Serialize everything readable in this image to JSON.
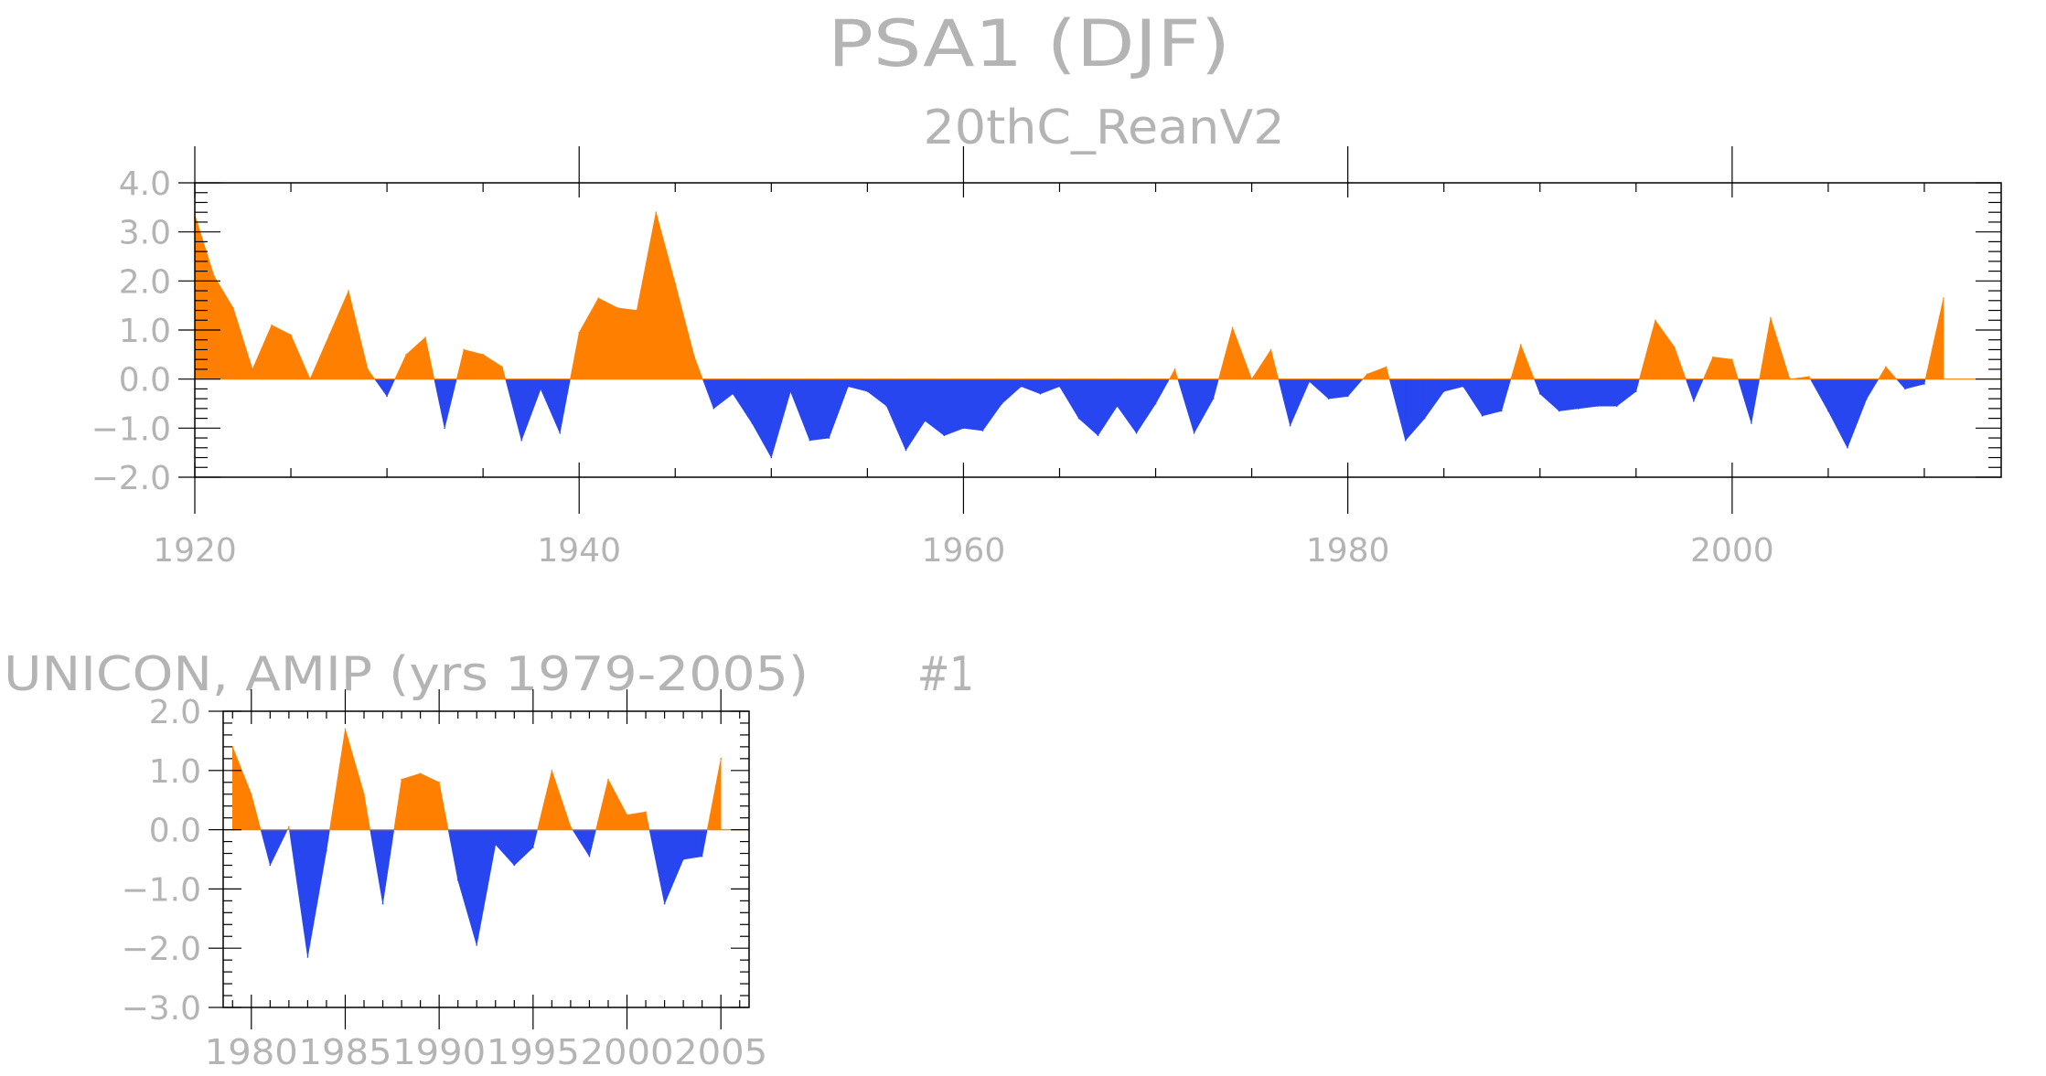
{
  "title": "PSA1 (DJF)",
  "panels": [
    {
      "subtitle": "20thC_ReanV2"
    },
    {
      "subtitle": "UNICON, AMIP (yrs 1979-2005)",
      "tag": "#1"
    }
  ],
  "colors": {
    "positive": "#ff8000",
    "negative": "#2846f0",
    "axis": "#000000",
    "text": "#b4b4b4"
  },
  "chart_data": [
    {
      "type": "area",
      "subtitle": "20thC_ReanV2",
      "x": [
        1920,
        1921,
        1922,
        1923,
        1924,
        1925,
        1926,
        1927,
        1928,
        1929,
        1930,
        1931,
        1932,
        1933,
        1934,
        1935,
        1936,
        1937,
        1938,
        1939,
        1940,
        1941,
        1942,
        1943,
        1944,
        1945,
        1946,
        1947,
        1948,
        1949,
        1950,
        1951,
        1952,
        1953,
        1954,
        1955,
        1956,
        1957,
        1958,
        1959,
        1960,
        1961,
        1962,
        1963,
        1964,
        1965,
        1966,
        1967,
        1968,
        1969,
        1970,
        1971,
        1972,
        1973,
        1974,
        1975,
        1976,
        1977,
        1978,
        1979,
        1980,
        1981,
        1982,
        1983,
        1984,
        1985,
        1986,
        1987,
        1988,
        1989,
        1990,
        1991,
        1992,
        1993,
        1994,
        1995,
        1996,
        1997,
        1998,
        1999,
        2000,
        2001,
        2002,
        2003,
        2004,
        2005,
        2006,
        2007,
        2008,
        2009,
        2010,
        2011
      ],
      "values": [
        3.35,
        2.1,
        1.45,
        0.2,
        1.1,
        0.9,
        0.0,
        0.9,
        1.8,
        0.2,
        -0.35,
        0.5,
        0.85,
        -1.0,
        0.6,
        0.5,
        0.25,
        -1.25,
        -0.2,
        -1.1,
        0.95,
        1.65,
        1.45,
        1.4,
        3.4,
        1.95,
        0.45,
        -0.6,
        -0.3,
        -0.9,
        -1.6,
        -0.25,
        -1.25,
        -1.2,
        -0.15,
        -0.25,
        -0.55,
        -1.45,
        -0.85,
        -1.15,
        -1.0,
        -1.05,
        -0.5,
        -0.15,
        -0.3,
        -0.15,
        -0.8,
        -1.15,
        -0.55,
        -1.1,
        -0.5,
        0.2,
        -1.1,
        -0.4,
        1.05,
        0.0,
        0.6,
        -0.95,
        -0.05,
        -0.4,
        -0.35,
        0.1,
        0.25,
        -1.25,
        -0.8,
        -0.25,
        -0.15,
        -0.75,
        -0.65,
        0.7,
        -0.3,
        -0.65,
        -0.6,
        -0.55,
        -0.55,
        -0.25,
        1.2,
        0.65,
        -0.45,
        0.45,
        0.4,
        -0.9,
        1.25,
        0.0,
        0.05,
        -0.65,
        -1.4,
        -0.4,
        0.25,
        -0.2,
        -0.1,
        1.65
      ],
      "xticks": [
        1920,
        1940,
        1960,
        1980,
        2000
      ],
      "xlim": [
        1920,
        2014
      ],
      "ylim": [
        -2.0,
        4.0
      ],
      "yticks": [
        -2.0,
        -1.0,
        0.0,
        1.0,
        2.0,
        3.0,
        4.0
      ],
      "ytick_labels": [
        "−2.0",
        "−1.0",
        "0.0",
        "1.0",
        "2.0",
        "3.0",
        "4.0"
      ]
    },
    {
      "type": "area",
      "subtitle": "UNICON, AMIP (yrs 1979-2005)",
      "x": [
        1979,
        1980,
        1981,
        1982,
        1983,
        1984,
        1985,
        1986,
        1987,
        1988,
        1989,
        1990,
        1991,
        1992,
        1993,
        1994,
        1995,
        1996,
        1997,
        1998,
        1999,
        2000,
        2001,
        2002,
        2003,
        2004,
        2005
      ],
      "values": [
        1.4,
        0.6,
        -0.6,
        0.05,
        -2.15,
        -0.35,
        1.7,
        0.6,
        -1.25,
        0.85,
        0.95,
        0.8,
        -0.85,
        -1.95,
        -0.25,
        -0.6,
        -0.3,
        1.0,
        0.05,
        -0.45,
        0.85,
        0.25,
        0.3,
        -1.25,
        -0.5,
        -0.45,
        1.2
      ],
      "xticks": [
        1980,
        1985,
        1990,
        1995,
        2000,
        2005
      ],
      "xlim": [
        1978.5,
        2006.5
      ],
      "ylim": [
        -3.0,
        2.0
      ],
      "yticks": [
        -3.0,
        -2.0,
        -1.0,
        0.0,
        1.0,
        2.0
      ],
      "ytick_labels": [
        "−3.0",
        "−2.0",
        "−1.0",
        "0.0",
        "1.0",
        "2.0"
      ]
    }
  ]
}
